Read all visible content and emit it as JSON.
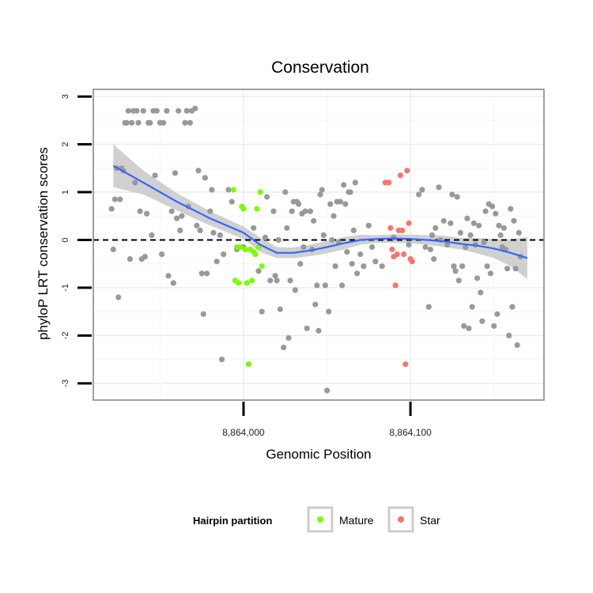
{
  "chart_data": {
    "type": "scatter",
    "title": "Conservation",
    "xlabel": "Genomic Position",
    "ylabel": "phyloP LRT conservation scores",
    "xlim": [
      8863910,
      8864180
    ],
    "ylim": [
      -3.35,
      3.15
    ],
    "x_ticks": [
      {
        "value": 8864000,
        "label": "8,864,000"
      },
      {
        "value": 8864100,
        "label": "8,864,100"
      }
    ],
    "y_ticks": [
      {
        "value": 3,
        "label": "3"
      },
      {
        "value": 2,
        "label": "2"
      },
      {
        "value": 1,
        "label": "1"
      },
      {
        "value": 0,
        "label": "0"
      },
      {
        "value": -1,
        "label": "-1"
      },
      {
        "value": -2,
        "label": "-2"
      },
      {
        "value": -3,
        "label": "-3"
      }
    ],
    "reference_line": {
      "y": 0,
      "style": "dashed"
    },
    "legend": {
      "title": "Hairpin partition",
      "position": "bottom",
      "entries": [
        {
          "name": "Mature",
          "color": "#7cfc00"
        },
        {
          "name": "Star",
          "color": "#f8766d"
        }
      ]
    },
    "colors": {
      "other": "#999999",
      "smooth": "#3366ff",
      "band": "#c8c8c8",
      "panel_border": "#888888"
    },
    "smooth": {
      "x": [
        8863922,
        8863940,
        8863960,
        8863980,
        8864000,
        8864010,
        8864020,
        8864030,
        8864040,
        8864050,
        8864060,
        8864070,
        8864080,
        8864090,
        8864100,
        8864110,
        8864120,
        8864130,
        8864140,
        8864150,
        8864160,
        8864170
      ],
      "y": [
        1.55,
        1.2,
        0.8,
        0.45,
        0.15,
        -0.1,
        -0.27,
        -0.27,
        -0.22,
        -0.15,
        -0.07,
        0,
        0.02,
        0.03,
        0.02,
        0,
        -0.03,
        -0.08,
        -0.12,
        -0.18,
        -0.27,
        -0.38
      ],
      "lower": [
        1.1,
        0.95,
        0.62,
        0.3,
        0.02,
        -0.25,
        -0.38,
        -0.38,
        -0.34,
        -0.28,
        -0.2,
        -0.1,
        -0.06,
        -0.06,
        -0.07,
        -0.1,
        -0.15,
        -0.2,
        -0.28,
        -0.38,
        -0.55,
        -0.82
      ],
      "upper": [
        2.0,
        1.45,
        0.98,
        0.6,
        0.28,
        0.05,
        -0.15,
        -0.16,
        -0.1,
        -0.02,
        0.06,
        0.11,
        0.1,
        0.12,
        0.11,
        0.1,
        0.09,
        0.04,
        0.04,
        0.02,
        0.01,
        0.06
      ]
    },
    "series": [
      {
        "name": "Other",
        "color": "#999999",
        "points": [
          [
            8863921,
            0.65
          ],
          [
            8863922,
            -0.2
          ],
          [
            8863923,
            0.85
          ],
          [
            8863924,
            1.5
          ],
          [
            8863925,
            -1.2
          ],
          [
            8863926,
            0.85
          ],
          [
            8863927,
            1.5
          ],
          [
            8863928,
            1.45
          ],
          [
            8863929,
            2.45
          ],
          [
            8863930,
            2.45
          ],
          [
            8863931,
            2.7
          ],
          [
            8863932,
            -0.4
          ],
          [
            8863933,
            2.45
          ],
          [
            8863934,
            2.7
          ],
          [
            8863935,
            1.2
          ],
          [
            8863936,
            2.7
          ],
          [
            8863937,
            2.45
          ],
          [
            8863938,
            0.6
          ],
          [
            8863939,
            -0.4
          ],
          [
            8863940,
            2.7
          ],
          [
            8863941,
            -0.35
          ],
          [
            8863942,
            0.55
          ],
          [
            8863943,
            2.45
          ],
          [
            8863944,
            2.45
          ],
          [
            8863945,
            0.1
          ],
          [
            8863946,
            2.7
          ],
          [
            8863947,
            1.35
          ],
          [
            8863948,
            2.7
          ],
          [
            8863950,
            2.45
          ],
          [
            8863951,
            -0.3
          ],
          [
            8863952,
            2.45
          ],
          [
            8863954,
            2.7
          ],
          [
            8863955,
            -0.75
          ],
          [
            8863957,
            0.6
          ],
          [
            8863958,
            -0.9
          ],
          [
            8863959,
            1.4
          ],
          [
            8863960,
            0.45
          ],
          [
            8863961,
            2.7
          ],
          [
            8863962,
            0.2
          ],
          [
            8863963,
            0.5
          ],
          [
            8863965,
            2.45
          ],
          [
            8863966,
            2.7
          ],
          [
            8863967,
            0.7
          ],
          [
            8863968,
            2.45
          ],
          [
            8863969,
            2.7
          ],
          [
            8863971,
            2.75
          ],
          [
            8863972,
            0.3
          ],
          [
            8863973,
            1.45
          ],
          [
            8863974,
            0.2
          ],
          [
            8863975,
            -0.7
          ],
          [
            8863976,
            -1.55
          ],
          [
            8863977,
            1.3
          ],
          [
            8863978,
            -0.7
          ],
          [
            8863980,
            0.6
          ],
          [
            8863981,
            1.05
          ],
          [
            8863982,
            0.15
          ],
          [
            8863984,
            -0.45
          ],
          [
            8863986,
            0.1
          ],
          [
            8863987,
            -2.5
          ],
          [
            8863988,
            -0.3
          ],
          [
            8863991,
            1.05
          ],
          [
            8863993,
            0.8
          ],
          [
            8863996,
            -0.2
          ],
          [
            8864000,
            -0.15
          ],
          [
            8864006,
            0.25
          ],
          [
            8864009,
            -0.65
          ],
          [
            8864011,
            -1.5
          ],
          [
            8864013,
            0.05
          ],
          [
            8864014,
            0.9
          ],
          [
            8864016,
            -0.85
          ],
          [
            8864018,
            0.6
          ],
          [
            8864019,
            -0.75
          ],
          [
            8864020,
            -0.85
          ],
          [
            8864021,
            0
          ],
          [
            8864022,
            -1.45
          ],
          [
            8864024,
            -2.25
          ],
          [
            8864025,
            1
          ],
          [
            8864026,
            0.25
          ],
          [
            8864027,
            -2.05
          ],
          [
            8864028,
            -0.85
          ],
          [
            8864029,
            0.6
          ],
          [
            8864030,
            0.8
          ],
          [
            8864031,
            -1.05
          ],
          [
            8864032,
            0.8
          ],
          [
            8864033,
            0.75
          ],
          [
            8864034,
            -0.5
          ],
          [
            8864035,
            0.55
          ],
          [
            8864036,
            -0.15
          ],
          [
            8864037,
            0.6
          ],
          [
            8864038,
            -1.85
          ],
          [
            8864040,
            0.6
          ],
          [
            8864041,
            -0.2
          ],
          [
            8864042,
            0.4
          ],
          [
            8864043,
            -1.35
          ],
          [
            8864044,
            -0.95
          ],
          [
            8864045,
            -1.9
          ],
          [
            8864046,
            0.95
          ],
          [
            8864047,
            1.05
          ],
          [
            8864048,
            0.1
          ],
          [
            8864049,
            -0.95
          ],
          [
            8864050,
            -3.15
          ],
          [
            8864051,
            -1.5
          ],
          [
            8864052,
            0.75
          ],
          [
            8864053,
            0
          ],
          [
            8864054,
            0.5
          ],
          [
            8864055,
            -0.55
          ],
          [
            8864056,
            0.8
          ],
          [
            8864057,
            -0.05
          ],
          [
            8864058,
            0.8
          ],
          [
            8864059,
            -0.95
          ],
          [
            8864060,
            1.15
          ],
          [
            8864061,
            0.75
          ],
          [
            8864062,
            -0.25
          ],
          [
            8864063,
            1
          ],
          [
            8864064,
            1
          ],
          [
            8864065,
            -0.5
          ],
          [
            8864066,
            0.2
          ],
          [
            8864067,
            1.2
          ],
          [
            8864068,
            -0.7
          ],
          [
            8864070,
            -0.3
          ],
          [
            8864072,
            -0.55
          ],
          [
            8864075,
            0.3
          ],
          [
            8864077,
            -0.15
          ],
          [
            8864079,
            -0.45
          ],
          [
            8864083,
            -0.55
          ],
          [
            8864090,
            0.05
          ],
          [
            8864099,
            -0.1
          ],
          [
            8864105,
            0.95
          ],
          [
            8864107,
            1.05
          ],
          [
            8864109,
            -0.15
          ],
          [
            8864111,
            -1.4
          ],
          [
            8864112,
            -0.2
          ],
          [
            8864113,
            0.1
          ],
          [
            8864114,
            -0.4
          ],
          [
            8864115,
            0.25
          ],
          [
            8864117,
            1.1
          ],
          [
            8864118,
            0
          ],
          [
            8864120,
            0.4
          ],
          [
            8864122,
            -0.1
          ],
          [
            8864124,
            0.35
          ],
          [
            8864125,
            0.95
          ],
          [
            8864126,
            -0.55
          ],
          [
            8864127,
            -0.65
          ],
          [
            8864128,
            0.9
          ],
          [
            8864129,
            -0.85
          ],
          [
            8864130,
            0.15
          ],
          [
            8864131,
            -0.55
          ],
          [
            8864132,
            -1.8
          ],
          [
            8864133,
            -0.15
          ],
          [
            8864134,
            0.45
          ],
          [
            8864135,
            -1.85
          ],
          [
            8864136,
            0.1
          ],
          [
            8864137,
            -1.4
          ],
          [
            8864138,
            0.35
          ],
          [
            8864139,
            -0.1
          ],
          [
            8864140,
            -0.8
          ],
          [
            8864141,
            0.3
          ],
          [
            8864142,
            -1.1
          ],
          [
            8864143,
            -1.7
          ],
          [
            8864144,
            -0.05
          ],
          [
            8864145,
            0.6
          ],
          [
            8864146,
            -0.55
          ],
          [
            8864147,
            0.75
          ],
          [
            8864148,
            -0.7
          ],
          [
            8864149,
            0.7
          ],
          [
            8864150,
            -1.8
          ],
          [
            8864151,
            0.55
          ],
          [
            8864152,
            -1.55
          ],
          [
            8864153,
            0.3
          ],
          [
            8864154,
            0.1
          ],
          [
            8864155,
            -0.15
          ],
          [
            8864156,
            0.25
          ],
          [
            8864157,
            -0.2
          ],
          [
            8864158,
            -0.6
          ],
          [
            8864159,
            -2
          ],
          [
            8864160,
            0.65
          ],
          [
            8864161,
            -1.4
          ],
          [
            8864162,
            0.4
          ],
          [
            8864163,
            -0.6
          ],
          [
            8864164,
            -2.2
          ],
          [
            8864165,
            0.15
          ],
          [
            8864166,
            -0.35
          ]
        ]
      },
      {
        "name": "Mature",
        "color": "#7cfc00",
        "points": [
          [
            8863994,
            1.05
          ],
          [
            8863995,
            -0.85
          ],
          [
            8863996,
            -0.15
          ],
          [
            8863997,
            -0.9
          ],
          [
            8863998,
            -0.15
          ],
          [
            8863999,
            0.7
          ],
          [
            8864000,
            0.65
          ],
          [
            8864001,
            -0.2
          ],
          [
            8864002,
            -0.9
          ],
          [
            8864003,
            -2.6
          ],
          [
            8864004,
            -0.2
          ],
          [
            8864005,
            -0.85
          ],
          [
            8864006,
            -0.25
          ],
          [
            8864007,
            -0.3
          ],
          [
            8864008,
            0.65
          ],
          [
            8864009,
            -0.15
          ],
          [
            8864010,
            1
          ],
          [
            8864011,
            -0.55
          ]
        ]
      },
      {
        "name": "Star",
        "color": "#f8766d",
        "points": [
          [
            8864085,
            1.2
          ],
          [
            8864087,
            1.2
          ],
          [
            8864088,
            0.25
          ],
          [
            8864089,
            -0.2
          ],
          [
            8864090,
            -0.35
          ],
          [
            8864091,
            -0.95
          ],
          [
            8864092,
            -0.3
          ],
          [
            8864093,
            0.2
          ],
          [
            8864094,
            1.35
          ],
          [
            8864095,
            0.2
          ],
          [
            8864096,
            -0.3
          ],
          [
            8864097,
            -2.6
          ],
          [
            8864098,
            1.45
          ],
          [
            8864099,
            0.35
          ],
          [
            8864100,
            -0.4
          ],
          [
            8864101,
            -0.45
          ]
        ]
      }
    ]
  }
}
